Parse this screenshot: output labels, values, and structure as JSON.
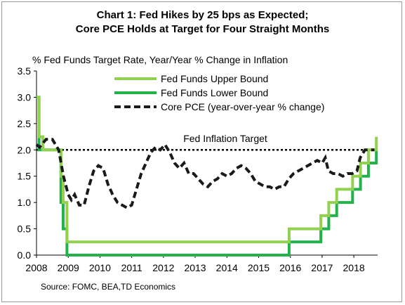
{
  "chart_data": {
    "type": "line",
    "title": "Chart 1: Fed Hikes by 25 bps as Expected;",
    "subtitle": "Core PCE Holds at Target for Four Straight Months",
    "ylabel": "% Fed Funds Target Rate, Year/Year % Change in Inflation",
    "xlabel": "",
    "ylim": [
      0,
      3.5
    ],
    "xlim": [
      2008,
      2018.75
    ],
    "y_ticks": [
      "0.0",
      "0.5",
      "1.0",
      "1.5",
      "2.0",
      "2.5",
      "3.0",
      "3.5"
    ],
    "x_ticks": [
      "2008",
      "2009",
      "2010",
      "2011",
      "2012",
      "2013",
      "2014",
      "2015",
      "2016",
      "2017",
      "2018"
    ],
    "grid": false,
    "legend_position": "top-center",
    "series": [
      {
        "name": "Fed Funds Upper Bound",
        "color": "#92d050",
        "style": "solid",
        "points": [
          [
            2008.0,
            3.0
          ],
          [
            2008.08,
            3.0
          ],
          [
            2008.08,
            2.25
          ],
          [
            2008.2,
            2.25
          ],
          [
            2008.2,
            2.0
          ],
          [
            2008.77,
            2.0
          ],
          [
            2008.77,
            1.5
          ],
          [
            2008.84,
            1.5
          ],
          [
            2008.84,
            1.0
          ],
          [
            2008.96,
            1.0
          ],
          [
            2008.96,
            0.25
          ],
          [
            2015.96,
            0.25
          ],
          [
            2015.96,
            0.5
          ],
          [
            2016.96,
            0.5
          ],
          [
            2016.96,
            0.75
          ],
          [
            2017.21,
            0.75
          ],
          [
            2017.21,
            1.0
          ],
          [
            2017.46,
            1.0
          ],
          [
            2017.46,
            1.25
          ],
          [
            2017.96,
            1.25
          ],
          [
            2017.96,
            1.5
          ],
          [
            2018.21,
            1.5
          ],
          [
            2018.21,
            1.75
          ],
          [
            2018.46,
            1.75
          ],
          [
            2018.46,
            2.0
          ],
          [
            2018.71,
            2.0
          ],
          [
            2018.71,
            2.25
          ]
        ]
      },
      {
        "name": "Fed Funds Lower Bound",
        "color": "#22b24c",
        "style": "solid",
        "points": [
          [
            2008.0,
            3.0
          ],
          [
            2008.08,
            3.0
          ],
          [
            2008.08,
            2.0
          ],
          [
            2008.77,
            2.0
          ],
          [
            2008.77,
            1.0
          ],
          [
            2008.84,
            1.0
          ],
          [
            2008.84,
            0.5
          ],
          [
            2008.96,
            0.5
          ],
          [
            2008.96,
            0.0
          ],
          [
            2015.96,
            0.0
          ],
          [
            2015.96,
            0.25
          ],
          [
            2016.96,
            0.25
          ],
          [
            2016.96,
            0.5
          ],
          [
            2017.21,
            0.5
          ],
          [
            2017.21,
            0.75
          ],
          [
            2017.46,
            0.75
          ],
          [
            2017.46,
            1.0
          ],
          [
            2017.96,
            1.0
          ],
          [
            2017.96,
            1.25
          ],
          [
            2018.21,
            1.25
          ],
          [
            2018.21,
            1.5
          ],
          [
            2018.46,
            1.5
          ],
          [
            2018.46,
            1.75
          ],
          [
            2018.71,
            1.75
          ],
          [
            2018.71,
            2.0
          ]
        ]
      },
      {
        "name": "Core PCE (year-over-year % change)",
        "color": "#1a1a1a",
        "style": "dashed",
        "points": [
          [
            2008.0,
            2.1
          ],
          [
            2008.1,
            2.05
          ],
          [
            2008.3,
            2.2
          ],
          [
            2008.5,
            2.2
          ],
          [
            2008.7,
            2.0
          ],
          [
            2008.85,
            1.5
          ],
          [
            2009.0,
            1.15
          ],
          [
            2009.1,
            1.05
          ],
          [
            2009.2,
            1.15
          ],
          [
            2009.35,
            0.95
          ],
          [
            2009.5,
            0.95
          ],
          [
            2009.65,
            1.3
          ],
          [
            2009.8,
            1.6
          ],
          [
            2009.95,
            1.7
          ],
          [
            2010.1,
            1.65
          ],
          [
            2010.25,
            1.35
          ],
          [
            2010.4,
            1.15
          ],
          [
            2010.55,
            1.0
          ],
          [
            2010.7,
            0.95
          ],
          [
            2010.85,
            0.9
          ],
          [
            2011.0,
            0.95
          ],
          [
            2011.15,
            1.25
          ],
          [
            2011.3,
            1.55
          ],
          [
            2011.45,
            1.75
          ],
          [
            2011.6,
            1.95
          ],
          [
            2011.75,
            2.05
          ],
          [
            2011.9,
            2.0
          ],
          [
            2012.05,
            2.1
          ],
          [
            2012.2,
            1.95
          ],
          [
            2012.35,
            1.75
          ],
          [
            2012.5,
            1.65
          ],
          [
            2012.65,
            1.75
          ],
          [
            2012.8,
            1.55
          ],
          [
            2012.95,
            1.55
          ],
          [
            2013.1,
            1.45
          ],
          [
            2013.25,
            1.35
          ],
          [
            2013.4,
            1.3
          ],
          [
            2013.55,
            1.4
          ],
          [
            2013.7,
            1.45
          ],
          [
            2013.85,
            1.55
          ],
          [
            2014.0,
            1.5
          ],
          [
            2014.15,
            1.55
          ],
          [
            2014.3,
            1.65
          ],
          [
            2014.45,
            1.7
          ],
          [
            2014.6,
            1.65
          ],
          [
            2014.75,
            1.55
          ],
          [
            2014.9,
            1.4
          ],
          [
            2015.05,
            1.35
          ],
          [
            2015.2,
            1.3
          ],
          [
            2015.35,
            1.3
          ],
          [
            2015.5,
            1.25
          ],
          [
            2015.65,
            1.3
          ],
          [
            2015.8,
            1.3
          ],
          [
            2015.95,
            1.45
          ],
          [
            2016.1,
            1.55
          ],
          [
            2016.25,
            1.6
          ],
          [
            2016.4,
            1.65
          ],
          [
            2016.55,
            1.7
          ],
          [
            2016.7,
            1.75
          ],
          [
            2016.85,
            1.8
          ],
          [
            2017.0,
            1.75
          ],
          [
            2017.1,
            1.85
          ],
          [
            2017.2,
            1.6
          ],
          [
            2017.35,
            1.55
          ],
          [
            2017.5,
            1.55
          ],
          [
            2017.65,
            1.5
          ],
          [
            2017.8,
            1.55
          ],
          [
            2017.95,
            1.55
          ],
          [
            2018.1,
            1.6
          ],
          [
            2018.2,
            1.85
          ],
          [
            2018.35,
            2.0
          ],
          [
            2018.5,
            2.0
          ],
          [
            2018.65,
            2.0
          ]
        ]
      },
      {
        "name": "Fed Inflation Target",
        "color": "#000000",
        "style": "dotted",
        "points": [
          [
            2008.0,
            2.0
          ],
          [
            2018.75,
            2.0
          ]
        ]
      }
    ],
    "annotations": [
      {
        "text": "Fed Inflation Target",
        "x": 2013.95,
        "y": 2.15
      }
    ]
  },
  "source": "Source: FOMC, BEA,TD Economics"
}
